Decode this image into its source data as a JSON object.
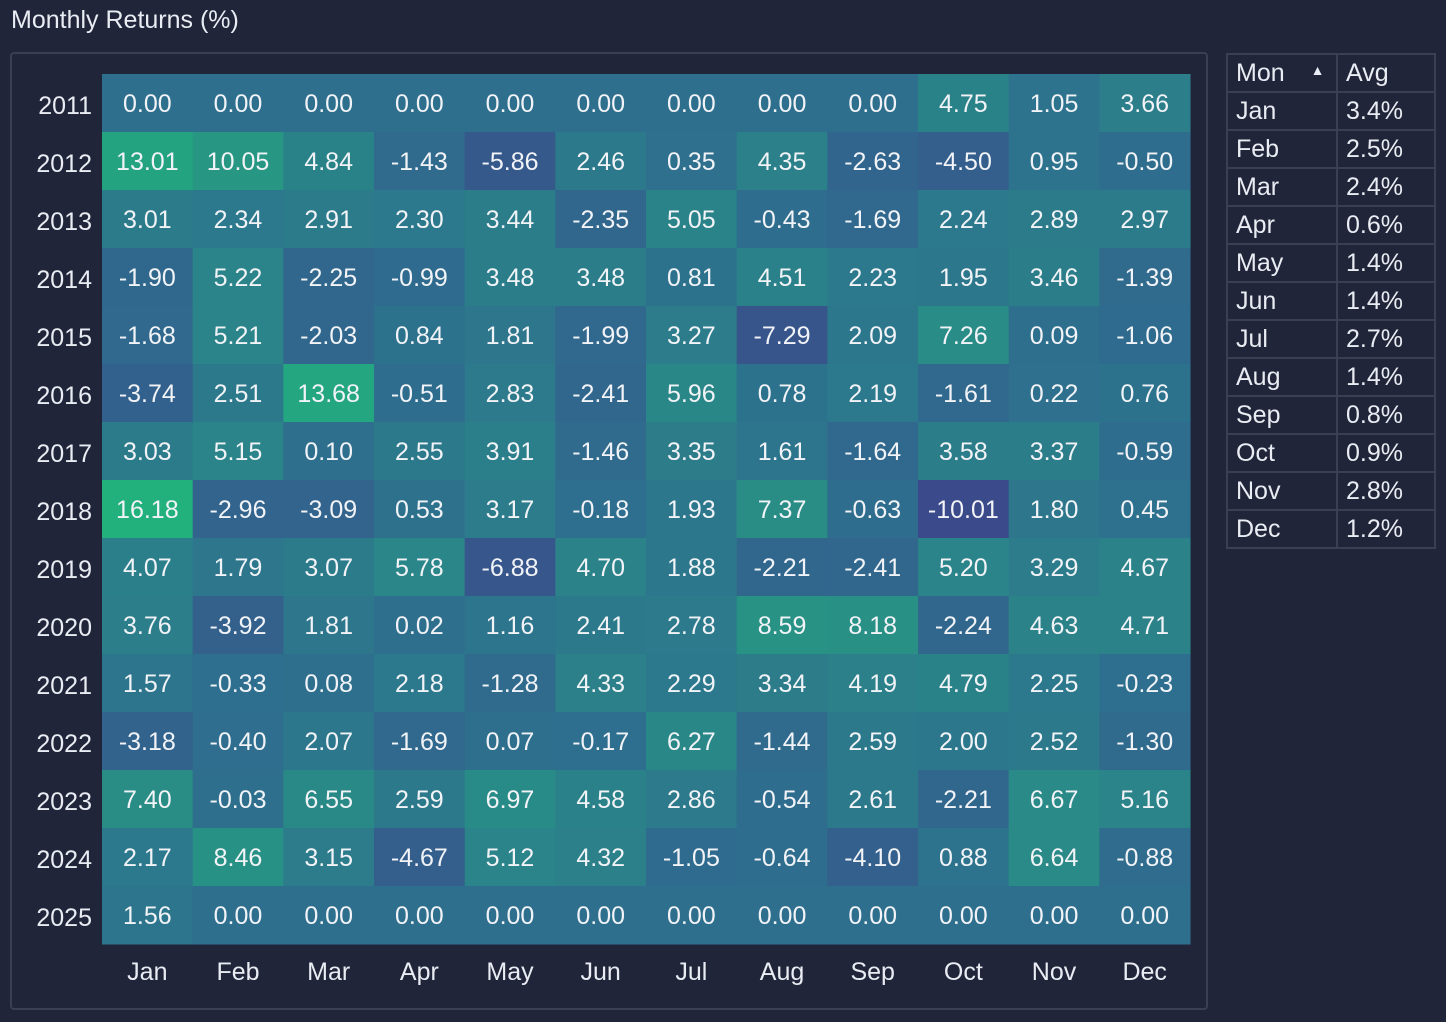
{
  "title": "Monthly Returns (%)",
  "chart_data": {
    "type": "heatmap",
    "title": "Monthly Returns (%)",
    "x": [
      "Jan",
      "Feb",
      "Mar",
      "Apr",
      "May",
      "Jun",
      "Jul",
      "Aug",
      "Sep",
      "Oct",
      "Nov",
      "Dec"
    ],
    "y": [
      "2011",
      "2012",
      "2013",
      "2014",
      "2015",
      "2016",
      "2017",
      "2018",
      "2019",
      "2020",
      "2021",
      "2022",
      "2023",
      "2024",
      "2025"
    ],
    "values": [
      [
        "0.00",
        "0.00",
        "0.00",
        "0.00",
        "0.00",
        "0.00",
        "0.00",
        "0.00",
        "0.00",
        "4.75",
        "1.05",
        "3.66"
      ],
      [
        "13.01",
        "10.05",
        "4.84",
        "-1.43",
        "-5.86",
        "2.46",
        "0.35",
        "4.35",
        "-2.63",
        "-4.50",
        "0.95",
        "-0.50"
      ],
      [
        "3.01",
        "2.34",
        "2.91",
        "2.30",
        "3.44",
        "-2.35",
        "5.05",
        "-0.43",
        "-1.69",
        "2.24",
        "2.89",
        "2.97"
      ],
      [
        "-1.90",
        "5.22",
        "-2.25",
        "-0.99",
        "3.48",
        "3.48",
        "0.81",
        "4.51",
        "2.23",
        "1.95",
        "3.46",
        "-1.39"
      ],
      [
        "-1.68",
        "5.21",
        "-2.03",
        "0.84",
        "1.81",
        "-1.99",
        "3.27",
        "-7.29",
        "2.09",
        "7.26",
        "0.09",
        "-1.06"
      ],
      [
        "-3.74",
        "2.51",
        "13.68",
        "-0.51",
        "2.83",
        "-2.41",
        "5.96",
        "0.78",
        "2.19",
        "-1.61",
        "0.22",
        "0.76"
      ],
      [
        "3.03",
        "5.15",
        "0.10",
        "2.55",
        "3.91",
        "-1.46",
        "3.35",
        "1.61",
        "-1.64",
        "3.58",
        "3.37",
        "-0.59"
      ],
      [
        "16.18",
        "-2.96",
        "-3.09",
        "0.53",
        "3.17",
        "-0.18",
        "1.93",
        "7.37",
        "-0.63",
        "-10.01",
        "1.80",
        "0.45"
      ],
      [
        "4.07",
        "1.79",
        "3.07",
        "5.78",
        "-6.88",
        "4.70",
        "1.88",
        "-2.21",
        "-2.41",
        "5.20",
        "3.29",
        "4.67"
      ],
      [
        "3.76",
        "-3.92",
        "1.81",
        "0.02",
        "1.16",
        "2.41",
        "2.78",
        "8.59",
        "8.18",
        "-2.24",
        "4.63",
        "4.71"
      ],
      [
        "1.57",
        "-0.33",
        "0.08",
        "2.18",
        "-1.28",
        "4.33",
        "2.29",
        "3.34",
        "4.19",
        "4.79",
        "2.25",
        "-0.23"
      ],
      [
        "-3.18",
        "-0.40",
        "2.07",
        "-1.69",
        "0.07",
        "-0.17",
        "6.27",
        "-1.44",
        "2.59",
        "2.00",
        "2.52",
        "-1.30"
      ],
      [
        "7.40",
        "-0.03",
        "6.55",
        "2.59",
        "6.97",
        "4.58",
        "2.86",
        "-0.54",
        "2.61",
        "-2.21",
        "6.67",
        "5.16"
      ],
      [
        "2.17",
        "8.46",
        "3.15",
        "-4.67",
        "5.12",
        "4.32",
        "-1.05",
        "-0.64",
        "-4.10",
        "0.88",
        "6.64",
        "-0.88"
      ],
      [
        "1.56",
        "0.00",
        "0.00",
        "0.00",
        "0.00",
        "0.00",
        "0.00",
        "0.00",
        "0.00",
        "0.00",
        "0.00",
        "0.00"
      ]
    ],
    "color_range": [
      -10.01,
      16.18
    ],
    "colors": {
      "low": "#3b4a8a",
      "mid": "#2e6f8e",
      "high": "#22b07d"
    }
  },
  "avg_table": {
    "headers": {
      "mon": "Mon",
      "avg": "Avg",
      "sort_icon": "sort-ascending-icon"
    },
    "rows": [
      {
        "mon": "Jan",
        "avg": "3.4%"
      },
      {
        "mon": "Feb",
        "avg": "2.5%"
      },
      {
        "mon": "Mar",
        "avg": "2.4%"
      },
      {
        "mon": "Apr",
        "avg": "0.6%"
      },
      {
        "mon": "May",
        "avg": "1.4%"
      },
      {
        "mon": "Jun",
        "avg": "1.4%"
      },
      {
        "mon": "Jul",
        "avg": "2.7%"
      },
      {
        "mon": "Aug",
        "avg": "1.4%"
      },
      {
        "mon": "Sep",
        "avg": "0.8%"
      },
      {
        "mon": "Oct",
        "avg": "0.9%"
      },
      {
        "mon": "Nov",
        "avg": "2.8%"
      },
      {
        "mon": "Dec",
        "avg": "1.2%"
      }
    ]
  }
}
